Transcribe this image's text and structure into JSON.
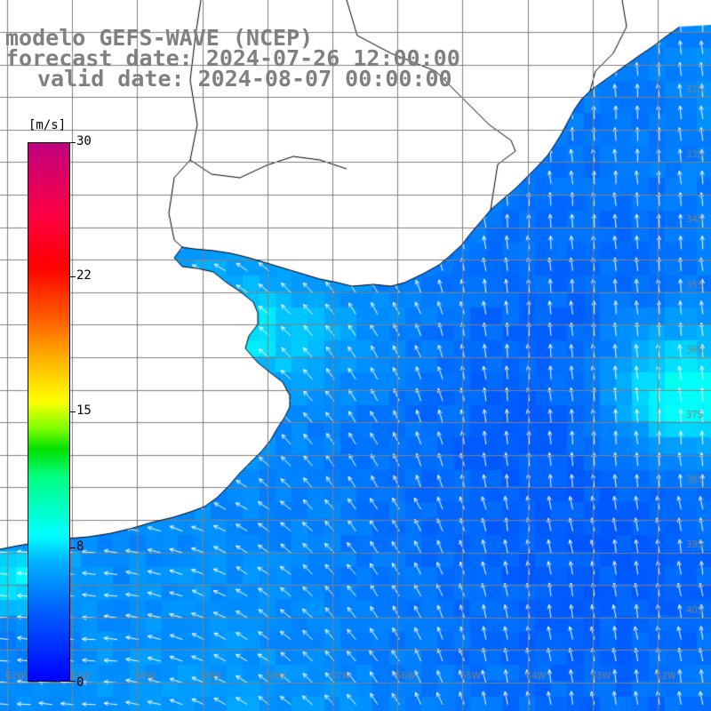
{
  "title": {
    "model": "modelo GEFS-WAVE (NCEP)",
    "forecast": "forecast date: 2024-07-26 12:00:00",
    "valid": "valid date: 2024-08-07 00:00:00"
  },
  "colorbar": {
    "unit": "[m/s]",
    "ticks": [
      "30",
      "22",
      "15",
      "8",
      "0"
    ],
    "colors_bottom_to_top": [
      "#0000ff",
      "#00b0ff",
      "#00ffff",
      "#00e000",
      "#ffff00",
      "#ff6000",
      "#ff0000",
      "#c00080"
    ]
  },
  "map": {
    "background_color": "#ffffff",
    "land_color": "#ffffff",
    "coastline_color": "#000000",
    "grid_color": "#808080",
    "vector_color": "#ffffff",
    "latitude_labels": [
      "32S",
      "33S",
      "34S",
      "35S",
      "36S",
      "37S",
      "38S",
      "39S",
      "40S"
    ],
    "longitude_labels": [
      "62W",
      "61W",
      "60W",
      "59W",
      "58W",
      "57W",
      "56W",
      "55W",
      "54W",
      "53W",
      "52W"
    ],
    "field_description": "wind speed and direction, predominantly southeasterly"
  }
}
